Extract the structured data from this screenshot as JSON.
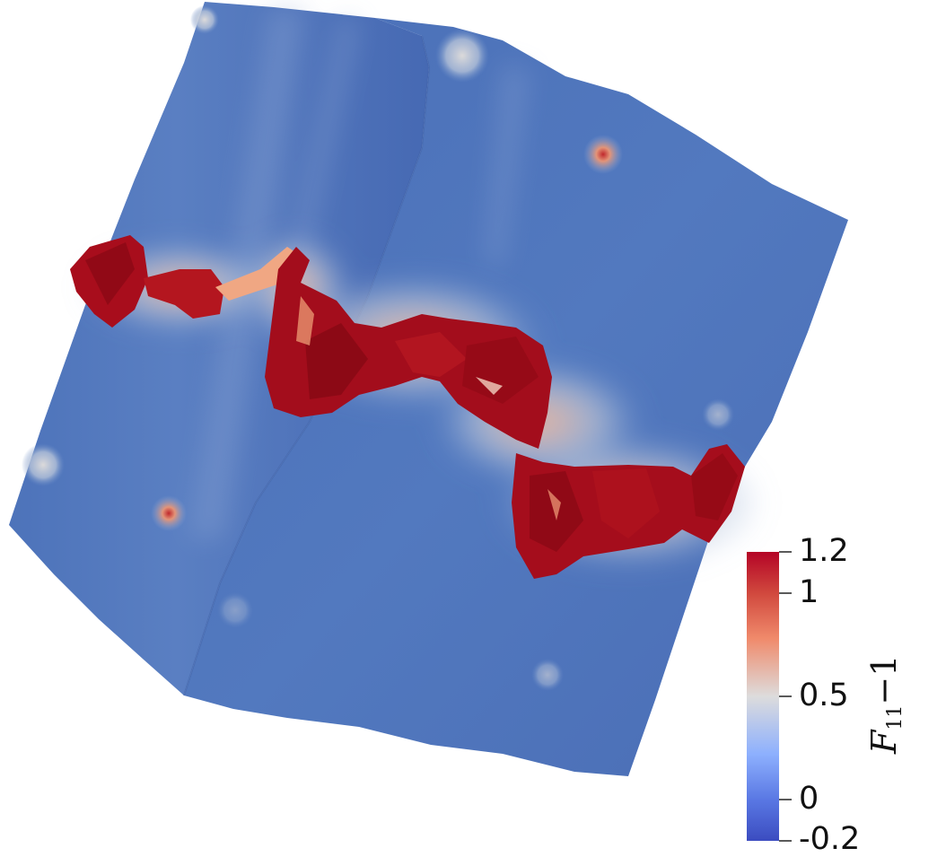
{
  "colorbar": {
    "title": {
      "symbol": "F",
      "subscript": "11",
      "suffix": "−1"
    },
    "min": -0.2,
    "max": 1.2,
    "ticks": [
      {
        "value": 1.2,
        "label": "1.2"
      },
      {
        "value": 1.0,
        "label": "1"
      },
      {
        "value": 0.5,
        "label": "0.5"
      },
      {
        "value": 0.0,
        "label": "0"
      },
      {
        "value": -0.2,
        "label": "-0.2"
      }
    ],
    "colors": {
      "high": "#b40426",
      "mid": "#dddcdc",
      "low": "#3b4cc0"
    }
  },
  "surface": {
    "base_color": "#4a70b8",
    "field_high_color": "#a80d1c",
    "field_mid_color": "#f3a481"
  }
}
